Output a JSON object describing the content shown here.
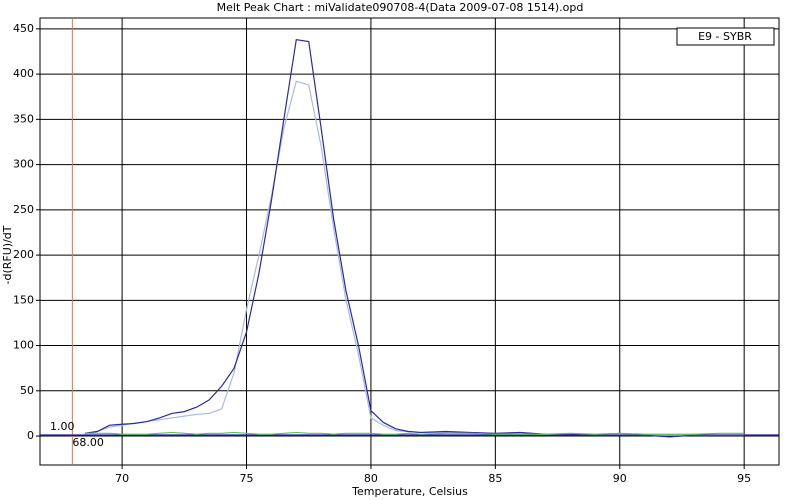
{
  "chart_data": {
    "type": "line",
    "title": "Melt Peak Chart : miValidate090708-4(Data 2009-07-08 1514).opd",
    "xlabel": "Temperature, Celsius",
    "ylabel": "-d(RFU)/dT",
    "legend": "E9 - SYBR",
    "x": [
      68.5,
      69,
      69.5,
      70,
      70.5,
      71,
      71.5,
      72,
      72.5,
      73,
      73.5,
      74,
      74.5,
      75,
      75.5,
      76,
      76.5,
      77,
      77.5,
      78,
      78.5,
      79,
      79.5,
      80,
      80.5,
      81,
      81.5,
      82,
      83,
      84,
      85,
      86,
      87,
      88,
      89,
      90,
      91,
      92,
      93,
      94,
      95
    ],
    "series": [
      {
        "color": "#a8b8e8",
        "values": [
          3,
          5,
          10,
          12,
          14,
          16,
          18,
          20,
          22,
          24,
          25,
          30,
          70,
          140,
          200,
          265,
          340,
          392,
          388,
          320,
          230,
          150,
          90,
          20,
          12,
          6,
          5,
          4,
          4,
          3,
          3,
          3,
          2,
          2,
          2,
          2,
          1,
          1,
          1,
          1,
          1
        ]
      },
      {
        "color": "#2a2aa0",
        "values": [
          3,
          5,
          12,
          13,
          14,
          16,
          20,
          25,
          27,
          32,
          40,
          55,
          75,
          115,
          180,
          260,
          350,
          438,
          436,
          340,
          240,
          160,
          100,
          28,
          15,
          8,
          5,
          4,
          5,
          4,
          3,
          4,
          2,
          2,
          1,
          1,
          1,
          -1,
          1,
          1,
          1
        ]
      },
      {
        "color": "#60c060",
        "values": [
          3,
          3,
          3,
          2,
          2,
          2,
          3,
          4,
          3,
          2,
          3,
          3,
          4,
          3,
          2,
          2,
          3,
          4,
          3,
          3,
          2,
          3,
          3,
          3,
          2,
          2,
          3,
          2,
          3,
          3,
          2,
          2,
          2,
          3,
          2,
          3,
          2,
          2,
          2,
          3,
          3
        ]
      }
    ],
    "threshold": {
      "value": 1,
      "label": "1.00"
    },
    "marker_x": {
      "value": 68,
      "label": "68.00"
    },
    "xlim": [
      66.7,
      96.4
    ],
    "ylim": [
      -32,
      462
    ],
    "xticks": [
      70,
      75,
      80,
      85,
      90,
      95
    ],
    "yticks": [
      0,
      50,
      100,
      150,
      200,
      250,
      300,
      350,
      400,
      450
    ],
    "grid": true
  }
}
